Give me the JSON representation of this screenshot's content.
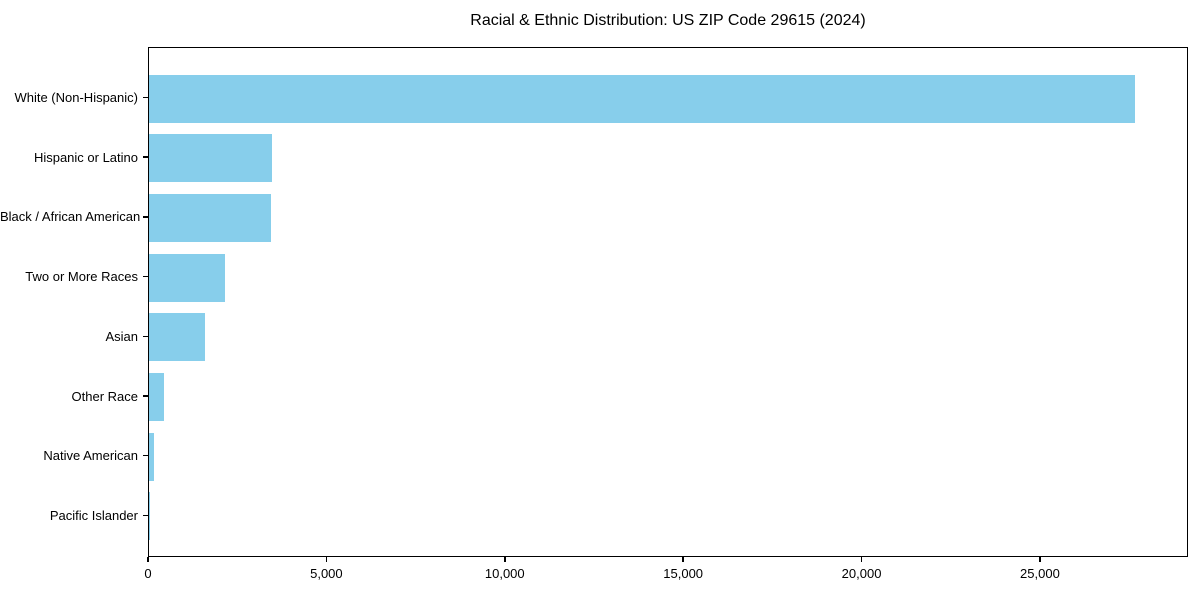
{
  "chart_data": {
    "type": "bar",
    "orientation": "horizontal",
    "title": "Racial & Ethnic Distribution: US ZIP Code 29615 (2024)",
    "categories": [
      "White (Non-Hispanic)",
      "Hispanic or Latino",
      "Black / African American",
      "Two or More Races",
      "Asian",
      "Other Race",
      "Native American",
      "Pacific Islander"
    ],
    "values": [
      27650,
      3450,
      3430,
      2130,
      1570,
      420,
      140,
      10
    ],
    "xlabel": "",
    "ylabel": "",
    "xlim": [
      0,
      29150
    ],
    "xticks": [
      {
        "value": 0,
        "label": "0"
      },
      {
        "value": 5000,
        "label": "5,000"
      },
      {
        "value": 10000,
        "label": "10,000"
      },
      {
        "value": 15000,
        "label": "15,000"
      },
      {
        "value": 20000,
        "label": "20,000"
      },
      {
        "value": 25000,
        "label": "25,000"
      }
    ],
    "bar_color": "#87CEEB",
    "axis_color": "#000000",
    "text_color": "#000000",
    "grid": false,
    "legend": null
  }
}
